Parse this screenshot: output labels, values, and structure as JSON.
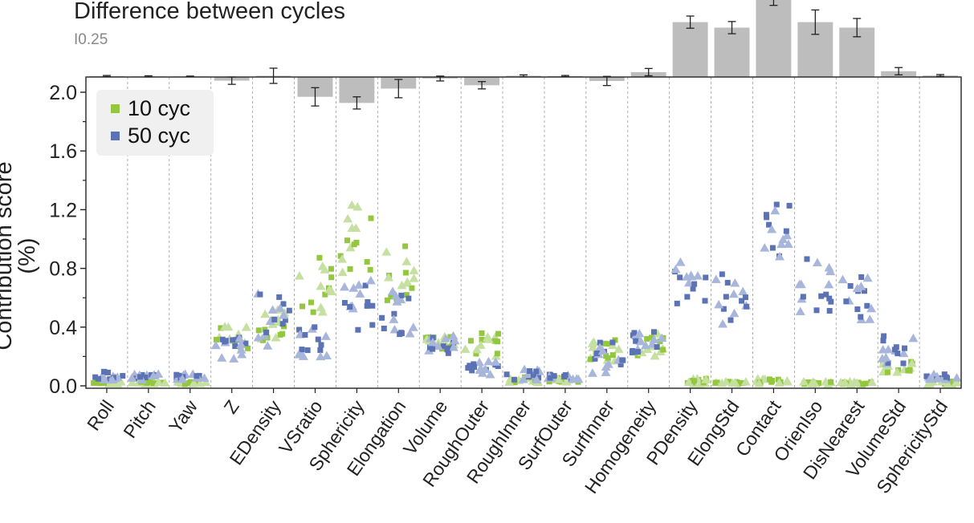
{
  "chart_data": {
    "type": "scatter",
    "title": "Difference between cycles",
    "scale_label": "I0.25",
    "ylabel": "Contribution score (%)",
    "xlabel": "",
    "ylim": [
      0,
      2.1
    ],
    "yticks": [
      "0.0",
      "0.4",
      "0.8",
      "1.2",
      "1.6",
      "2.0"
    ],
    "grid": "vertical dashed separators",
    "legend_position": "top-left",
    "categories": [
      "Roll",
      "Pitch",
      "Yaw",
      "Z",
      "EDensity",
      "VSratio",
      "Sphericity",
      "Elongation",
      "Volume",
      "RoughOuter",
      "RoughInner",
      "SurfOuter",
      "SurfInner",
      "Homogeneity",
      "PDensity",
      "ElongStd",
      "Contact",
      "OrienIso",
      "DisNearest",
      "VolumeStd",
      "SphericityStd"
    ],
    "difference_bars": [
      0.03,
      0.02,
      0.02,
      -0.12,
      0.04,
      -0.65,
      -0.85,
      -0.38,
      -0.05,
      -0.27,
      0.04,
      0.03,
      -0.13,
      0.16,
      1.8,
      1.62,
      2.6,
      1.8,
      1.62,
      0.19,
      0.05
    ],
    "difference_errors": [
      0.02,
      0.02,
      0.01,
      0.12,
      0.25,
      0.3,
      0.2,
      0.3,
      0.08,
      0.12,
      0.03,
      0.02,
      0.15,
      0.12,
      0.2,
      0.2,
      0.25,
      0.4,
      0.3,
      0.12,
      0.03
    ],
    "series": [
      {
        "name": "10 cyc",
        "color": "#93c83e",
        "mean": [
          0.02,
          0.02,
          0.02,
          0.33,
          0.42,
          0.68,
          1.0,
          0.78,
          0.3,
          0.28,
          0.04,
          0.04,
          0.25,
          0.28,
          0.03,
          0.02,
          0.03,
          0.02,
          0.02,
          0.13,
          0.02
        ],
        "spread": [
          0.01,
          0.01,
          0.01,
          0.08,
          0.12,
          0.2,
          0.25,
          0.2,
          0.05,
          0.08,
          0.02,
          0.02,
          0.08,
          0.08,
          0.02,
          0.01,
          0.02,
          0.01,
          0.01,
          0.04,
          0.01
        ]
      },
      {
        "name": "50 cyc",
        "color": "#5b73b4",
        "mean": [
          0.07,
          0.06,
          0.06,
          0.25,
          0.45,
          0.3,
          0.55,
          0.5,
          0.28,
          0.12,
          0.08,
          0.06,
          0.2,
          0.3,
          0.7,
          0.6,
          1.05,
          0.68,
          0.6,
          0.25,
          0.06
        ],
        "spread": [
          0.03,
          0.02,
          0.02,
          0.08,
          0.18,
          0.12,
          0.18,
          0.15,
          0.06,
          0.05,
          0.04,
          0.02,
          0.12,
          0.08,
          0.15,
          0.18,
          0.2,
          0.2,
          0.15,
          0.1,
          0.02
        ]
      }
    ]
  }
}
